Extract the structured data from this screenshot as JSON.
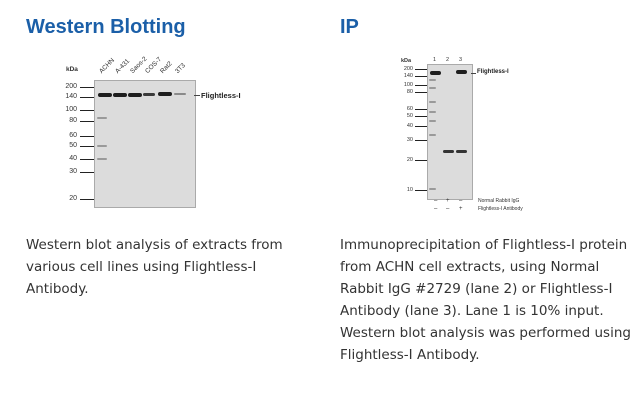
{
  "left": {
    "title": "Western Blotting",
    "caption": "Western blot analysis of extracts from various cell lines using Flightless-I Antibody.",
    "unit_label": "kDa",
    "mw_markers": [
      "200",
      "140",
      "100",
      "80",
      "60",
      "50",
      "40",
      "30",
      "20"
    ],
    "lanes": [
      "ACHN",
      "A-431",
      "Saos-2",
      "COS-7",
      "Rat2",
      "3T3"
    ],
    "protein_label": "Flightless-I"
  },
  "right": {
    "title": "IP",
    "caption": "Immunoprecipitation of Flightless-I protein from ACHN cell extracts, using Normal Rabbit IgG #2729 (lane 2) or Flightless-I Antibody (lane 3). Lane 1 is 10% input. Western blot analysis was performed using Flightless-I Antibody.",
    "unit_label": "kDa",
    "mw_markers": [
      "200",
      "140",
      "100",
      "80",
      "60",
      "50",
      "40",
      "30",
      "20",
      "10"
    ],
    "lane_numbers": [
      "1",
      "2",
      "3"
    ],
    "protein_label": "Flightless-I",
    "row1_label": "Normal Rabbit IgG",
    "row2_label": "Flightless-I Antibody",
    "row1_signs": [
      "–",
      "+",
      "–"
    ],
    "row2_signs": [
      "–",
      "–",
      "+"
    ]
  }
}
